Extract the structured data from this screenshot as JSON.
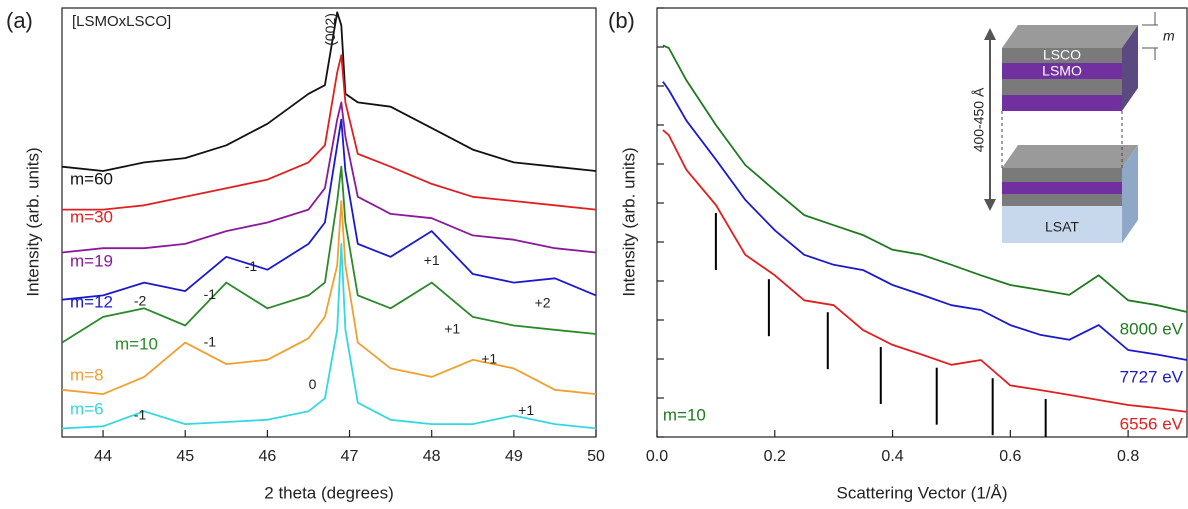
{
  "chart_data": [
    {
      "type": "line",
      "label": "(a)",
      "subtitle": "[LSMOxLSCO]",
      "xlabel": "2 theta (degrees)",
      "ylabel": "Intensity (arb. units)",
      "xlim": [
        43.5,
        50
      ],
      "xticks": [
        44,
        45,
        46,
        47,
        48,
        49,
        50
      ],
      "ylim": [
        0,
        10
      ],
      "log": false,
      "x": [
        43.5,
        44,
        44.5,
        45,
        45.5,
        46,
        46.5,
        46.7,
        46.85,
        46.9,
        46.95,
        47.1,
        47.5,
        48,
        48.5,
        49,
        49.5,
        50
      ],
      "series": [
        {
          "name": "m=60",
          "color": "#111111",
          "values": [
            6.3,
            6.2,
            6.4,
            6.5,
            6.8,
            7.3,
            8.0,
            8.2,
            9.9,
            9.6,
            8.0,
            7.8,
            7.7,
            7.2,
            6.7,
            6.4,
            6.3,
            6.2
          ]
        },
        {
          "name": "m=30",
          "color": "#e02020",
          "values": [
            5.3,
            5.3,
            5.4,
            5.6,
            5.8,
            6.0,
            6.4,
            6.8,
            8.5,
            8.9,
            7.8,
            6.6,
            6.3,
            5.9,
            5.6,
            5.5,
            5.4,
            5.3
          ]
        },
        {
          "name": "m=19",
          "color": "#8a1a9a",
          "values": [
            4.3,
            4.4,
            4.4,
            4.5,
            4.8,
            5.0,
            5.3,
            5.8,
            7.4,
            7.8,
            7.0,
            5.6,
            5.2,
            5.1,
            4.7,
            4.6,
            4.4,
            4.3
          ]
        },
        {
          "name": "m=12",
          "color": "#1a1acc",
          "values": [
            3.2,
            3.3,
            3.6,
            3.4,
            4.2,
            3.9,
            4.5,
            5.0,
            6.8,
            7.4,
            6.2,
            4.5,
            4.2,
            4.8,
            3.8,
            3.6,
            3.7,
            3.3
          ]
        },
        {
          "name": "m=10",
          "color": "#2a8a2a",
          "values": [
            2.2,
            2.8,
            3.0,
            2.6,
            3.6,
            3.0,
            3.3,
            3.6,
            5.5,
            6.3,
            5.0,
            3.3,
            3.0,
            3.6,
            2.8,
            2.6,
            2.5,
            2.4
          ]
        },
        {
          "name": "m=8",
          "color": "#f0a030",
          "values": [
            1.1,
            1.0,
            1.4,
            2.2,
            1.7,
            1.8,
            2.3,
            2.8,
            4.0,
            5.5,
            4.0,
            2.2,
            1.6,
            1.4,
            1.8,
            1.6,
            1.1,
            1.0
          ]
        },
        {
          "name": "m=6",
          "color": "#35d8e0",
          "values": [
            0.2,
            0.25,
            0.6,
            0.3,
            0.35,
            0.4,
            0.6,
            0.9,
            2.5,
            4.5,
            2.5,
            0.8,
            0.4,
            0.3,
            0.3,
            0.5,
            0.3,
            0.2
          ]
        }
      ],
      "annotations": [
        {
          "text": "(002)",
          "x": 46.78,
          "y": 9.5,
          "vertical": true
        },
        {
          "text": "-1",
          "x": 44.45,
          "y": 0.5
        },
        {
          "text": "0",
          "x": 46.55,
          "y": 1.2
        },
        {
          "text": "+1",
          "x": 49.15,
          "y": 0.6
        },
        {
          "text": "-1",
          "x": 45.3,
          "y": 2.2
        },
        {
          "text": "+1",
          "x": 48.7,
          "y": 1.8
        },
        {
          "text": "-1",
          "x": 45.3,
          "y": 3.3
        },
        {
          "text": "+1",
          "x": 48.25,
          "y": 2.5
        },
        {
          "text": "-2",
          "x": 44.45,
          "y": 3.15
        },
        {
          "text": "-1",
          "x": 45.8,
          "y": 3.95
        },
        {
          "text": "+1",
          "x": 48.0,
          "y": 4.1
        },
        {
          "text": "+2",
          "x": 49.35,
          "y": 3.1
        }
      ]
    },
    {
      "type": "line",
      "label": "(b)",
      "xlabel": "Scattering Vector (1/Å)",
      "ylabel": "Intensity (arb. units)",
      "xlim": [
        0,
        0.9
      ],
      "xticks": [
        {
          "value": 0,
          "label": "0.0"
        },
        0.2,
        0.4,
        0.6,
        0.8
      ],
      "ylim": [
        1e-11,
        1
      ],
      "log": true,
      "yticks": [
        1e-11,
        1e-10,
        1e-09,
        1e-08,
        1e-07,
        1e-06,
        1e-05,
        0.0001,
        0.001,
        0.01,
        0.1,
        1
      ],
      "x": [
        0.01,
        0.02,
        0.05,
        0.1,
        0.15,
        0.2,
        0.25,
        0.3,
        0.35,
        0.4,
        0.45,
        0.5,
        0.55,
        0.6,
        0.65,
        0.7,
        0.75,
        0.8,
        0.85,
        0.9
      ],
      "series": [
        {
          "name": "8000 eV",
          "color": "#1e7a1e",
          "values": [
            0.11,
            0.094,
            0.014,
            0.001,
            9.4e-05,
            2.1e-05,
            4.9e-06,
            2.7e-06,
            1.5e-06,
            6.3e-07,
            4.7e-07,
            2.6e-07,
            1.4e-07,
            7.9e-08,
            5.9e-08,
            4.4e-08,
            1.4e-07,
            3.2e-08,
            2.4e-08,
            1.6e-08
          ]
        },
        {
          "name": "7727 eV",
          "color": "#1a1acc",
          "values": [
            0.013,
            0.0079,
            0.0013,
            0.00013,
            1.2e-05,
            2e-06,
            4.7e-07,
            2.6e-07,
            1.9e-07,
            7.9e-08,
            4.4e-08,
            2.4e-08,
            1.8e-08,
            7.4e-09,
            4.2e-09,
            3.1e-09,
            7.4e-09,
            1.7e-09,
            1.3e-09,
            9.4e-10
          ]
        },
        {
          "name": "6556 eV",
          "color": "#e02020",
          "values": [
            0.00074,
            0.00055,
            7.1e-05,
            8.9e-06,
            4.7e-07,
            1.4e-07,
            3.2e-08,
            2.4e-08,
            5.5e-09,
            2.3e-09,
            1.3e-09,
            7.1e-10,
            9.4e-10,
            2.1e-10,
            1.6e-10,
            1.2e-10,
            8.9e-11,
            6.6e-11,
            5.5e-11,
            4.4e-11
          ]
        }
      ],
      "bragg_peaks": [
        0.1,
        0.19,
        0.29,
        0.38,
        0.475,
        0.57,
        0.66
      ],
      "annotations": [
        {
          "text": "m=10",
          "x": 0.01,
          "y": 1.5e-11
        }
      ],
      "inset": {
        "top_layer": "LSCO",
        "second_layer": "LSMO",
        "substrate": "LSAT",
        "thickness": "400-450 Å",
        "period": "m"
      }
    }
  ]
}
